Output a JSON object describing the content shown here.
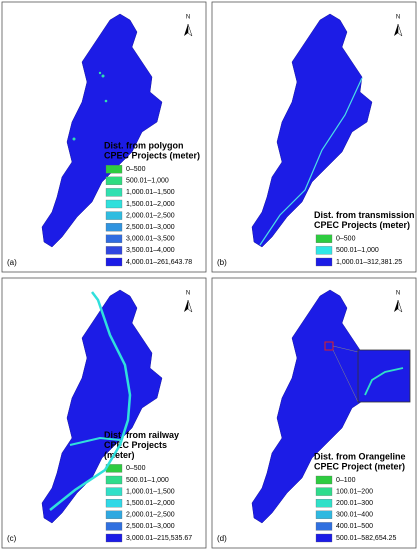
{
  "panels": [
    {
      "label": "(a)",
      "north": "N",
      "legend": {
        "title": [
          "Dist. from polygon",
          "CPEC Projects (meter)"
        ],
        "items": [
          {
            "label": "0–500",
            "color": "#2ecc40"
          },
          {
            "label": "500.01–1,000",
            "color": "#2fdc80"
          },
          {
            "label": "1,000.01–1,500",
            "color": "#30e0b0"
          },
          {
            "label": "1,500.01–2,000",
            "color": "#30e0dc"
          },
          {
            "label": "2,000.01–2,500",
            "color": "#30bce0"
          },
          {
            "label": "2,500.01–3,000",
            "color": "#3094e0"
          },
          {
            "label": "3,000.01–3,500",
            "color": "#306ce0"
          },
          {
            "label": "3,500.01–4,000",
            "color": "#3046e0"
          },
          {
            "label": "4,000.01–261,643.78",
            "color": "#1c1ce6"
          }
        ]
      }
    },
    {
      "label": "(b)",
      "north": "N",
      "legend": {
        "title": [
          "Dist. from transmission",
          "CPEC Projects (meter)"
        ],
        "items": [
          {
            "label": "0–500",
            "color": "#2ecc40"
          },
          {
            "label": "500.01–1,000",
            "color": "#30e6e6"
          },
          {
            "label": "1,000.01–312,381.25",
            "color": "#1c1ce6"
          }
        ]
      }
    },
    {
      "label": "(c)",
      "north": "N",
      "legend": {
        "title": [
          "Dist. from railway",
          "CPEC Projects",
          "(meter)"
        ],
        "items": [
          {
            "label": "0–500",
            "color": "#2ecc40"
          },
          {
            "label": "500.01–1,000",
            "color": "#2fdc8c"
          },
          {
            "label": "1,000.01–1,500",
            "color": "#30e0c8"
          },
          {
            "label": "1,500.01–2,000",
            "color": "#30d8e6"
          },
          {
            "label": "2,000.01–2,500",
            "color": "#30a8e0"
          },
          {
            "label": "2,500.01–3,000",
            "color": "#3070e0"
          },
          {
            "label": "3,000.01–215,535.67",
            "color": "#1c1ce6"
          }
        ]
      }
    },
    {
      "label": "(d)",
      "north": "N",
      "legend": {
        "title": [
          "Dist. from Orangeline",
          "CPEC Project (meter)"
        ],
        "items": [
          {
            "label": "0–100",
            "color": "#2ecc40"
          },
          {
            "label": "100.01–200",
            "color": "#2fdc8c"
          },
          {
            "label": "200.01–300",
            "color": "#30e0c8"
          },
          {
            "label": "300.01–400",
            "color": "#30b8e0"
          },
          {
            "label": "400.01–500",
            "color": "#3070e0"
          },
          {
            "label": "500.01–582,654.25",
            "color": "#1c1ce6"
          }
        ]
      }
    }
  ]
}
